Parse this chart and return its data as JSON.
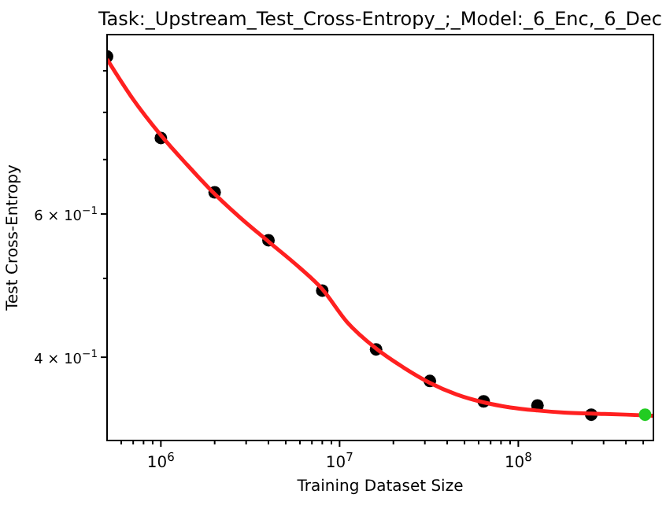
{
  "chart_data": {
    "type": "scatter",
    "title": "Task:_Upstream_Test_Cross-Entropy_;_Model:_6_Enc,_6_Dec",
    "xlabel": "Training Dataset Size",
    "ylabel": "Test Cross-Entropy",
    "log": "xy",
    "grid": false,
    "marker": "circle",
    "xlim": [
      500000,
      570000000
    ],
    "ylim": [
      0.316,
      0.997
    ],
    "xticks": [
      {
        "value": 1000000,
        "label": "10$^{6}$"
      },
      {
        "value": 10000000,
        "label": "10$^{7}$"
      },
      {
        "value": 100000000,
        "label": "10$^{8}$"
      },
      {
        "value": 600000,
        "label": null
      },
      {
        "value": 700000,
        "label": null
      },
      {
        "value": 800000,
        "label": null
      },
      {
        "value": 900000,
        "label": null
      },
      {
        "value": 2000000,
        "label": null
      },
      {
        "value": 3000000,
        "label": null
      },
      {
        "value": 4000000,
        "label": null
      },
      {
        "value": 5000000,
        "label": null
      },
      {
        "value": 6000000,
        "label": null
      },
      {
        "value": 7000000,
        "label": null
      },
      {
        "value": 8000000,
        "label": null
      },
      {
        "value": 9000000,
        "label": null
      },
      {
        "value": 20000000,
        "label": null
      },
      {
        "value": 30000000,
        "label": null
      },
      {
        "value": 40000000,
        "label": null
      },
      {
        "value": 50000000,
        "label": null
      },
      {
        "value": 60000000,
        "label": null
      },
      {
        "value": 70000000,
        "label": null
      },
      {
        "value": 80000000,
        "label": null
      },
      {
        "value": 90000000,
        "label": null
      },
      {
        "value": 200000000,
        "label": null
      },
      {
        "value": 300000000,
        "label": null
      },
      {
        "value": 400000000,
        "label": null
      },
      {
        "value": 500000000,
        "label": null
      }
    ],
    "yticks": [
      {
        "value": 0.4,
        "label": "4 × 10$^{−1}$"
      },
      {
        "value": 0.6,
        "label": "6 × 10$^{−1}$"
      },
      {
        "value": 0.5,
        "label": null
      },
      {
        "value": 0.7,
        "label": null
      },
      {
        "value": 0.8,
        "label": null
      },
      {
        "value": 0.9,
        "label": null
      }
    ],
    "series": [
      {
        "color": "#000000",
        "x": [
          500000,
          1000000,
          2000000,
          4000000,
          8000000,
          16000000,
          32000000,
          64000000,
          128000000,
          256000000
        ],
        "values": [
          0.937,
          0.744,
          0.638,
          0.557,
          0.483,
          0.409,
          0.374,
          0.353,
          0.349,
          0.34
        ]
      },
      {
        "type": "line",
        "color": "#ff2020",
        "marker": "none",
        "line_style": "solid",
        "x": [
          500000,
          700000,
          1000000,
          1400000,
          2000000,
          2800000,
          4000000,
          6000000,
          8000000,
          11000000,
          16000000,
          23000000,
          32000000,
          45000000,
          64000000,
          90000000,
          128000000,
          180000000,
          256000000,
          400000000,
          570000000
        ],
        "values": [
          0.93,
          0.83,
          0.75,
          0.69,
          0.635,
          0.593,
          0.555,
          0.515,
          0.485,
          0.442,
          0.41,
          0.388,
          0.372,
          0.36,
          0.352,
          0.347,
          0.344,
          0.342,
          0.341,
          0.34,
          0.339
        ]
      },
      {
        "color": "#22cc22",
        "x": [
          512000000
        ],
        "values": [
          0.34
        ]
      }
    ]
  }
}
